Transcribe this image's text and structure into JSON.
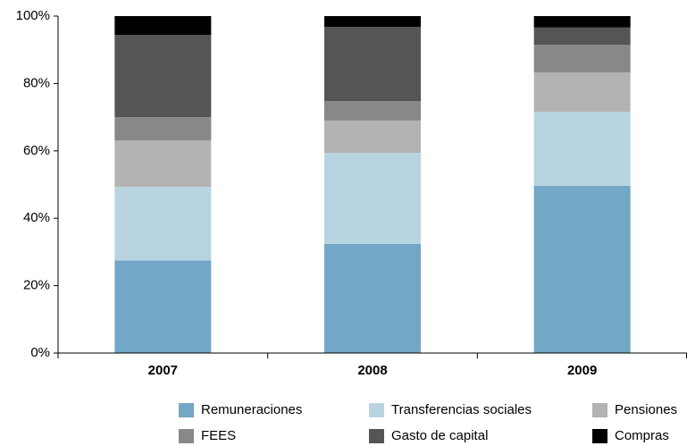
{
  "chart_data": {
    "type": "stacked-bar",
    "categories": [
      "2007",
      "2008",
      "2009"
    ],
    "series": [
      {
        "name": "Remuneraciones",
        "color": "#72a7c5",
        "values": [
          27.5,
          32.4,
          49.6
        ]
      },
      {
        "name": "Transferencias sociales",
        "color": "#b9d4e1",
        "values": [
          21.8,
          27.0,
          22.0
        ]
      },
      {
        "name": "Pensiones",
        "color": "#b3b3b3",
        "values": [
          13.8,
          9.6,
          11.7
        ]
      },
      {
        "name": "FEES",
        "color": "#888888",
        "values": [
          6.9,
          5.8,
          8.2
        ]
      },
      {
        "name": "Gasto de capital",
        "color": "#555555",
        "values": [
          24.4,
          22.0,
          5.1
        ]
      },
      {
        "name": "Compras",
        "color": "#000000",
        "values": [
          5.6,
          3.2,
          3.4
        ]
      }
    ],
    "ylim": [
      0,
      100
    ],
    "yticks": [
      {
        "value": 0,
        "label": "0%"
      },
      {
        "value": 20,
        "label": "20%"
      },
      {
        "value": 40,
        "label": "40%"
      },
      {
        "value": 60,
        "label": "60%"
      },
      {
        "value": 80,
        "label": "80%"
      },
      {
        "value": 100,
        "label": "100%"
      }
    ]
  }
}
